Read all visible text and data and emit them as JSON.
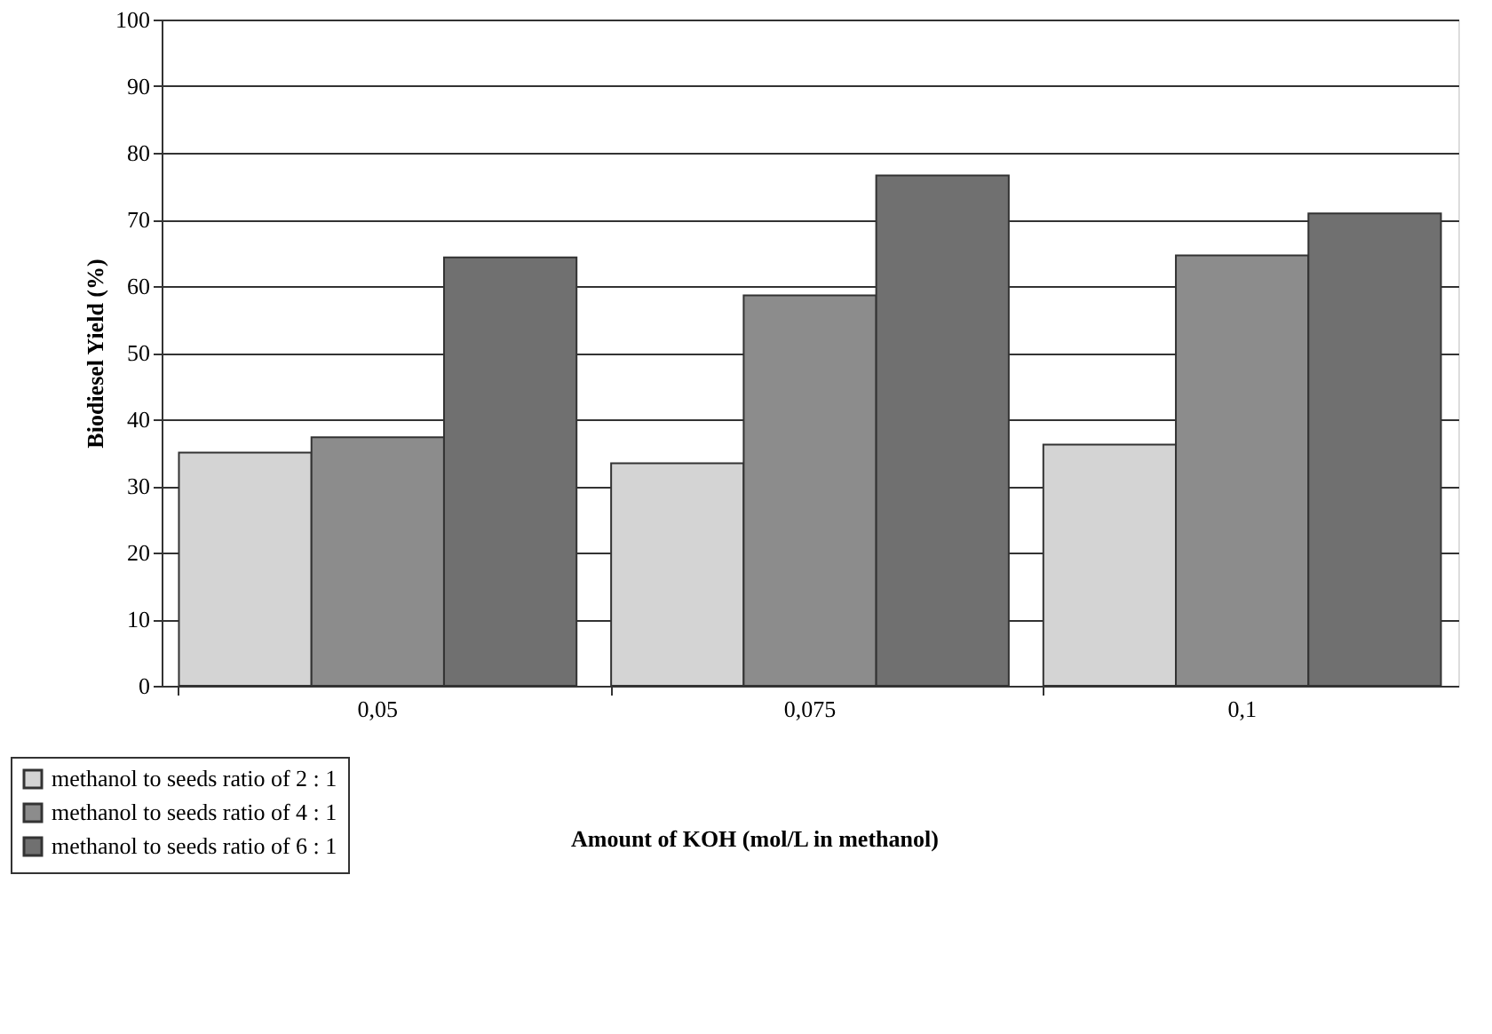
{
  "chart_data": {
    "type": "bar",
    "categories": [
      "0,05",
      "0,075",
      "0,1"
    ],
    "series": [
      {
        "name": "methanol to seeds ratio of 2 : 1",
        "color": "#d4d4d4",
        "values": [
          35.0,
          33.4,
          36.2
        ]
      },
      {
        "name": "methanol to seeds ratio of 4 : 1",
        "color": "#8c8c8c",
        "values": [
          37.3,
          58.6,
          64.6
        ]
      },
      {
        "name": "methanol to seeds ratio of 6 : 1",
        "color": "#707070",
        "values": [
          64.3,
          76.6,
          70.9
        ]
      }
    ],
    "xlabel": "Amount of KOH (mol/L in methanol)",
    "ylabel": "Biodiesel Yield (%)",
    "ylim": [
      0,
      100
    ],
    "yticks": [
      0,
      10,
      20,
      30,
      40,
      50,
      60,
      70,
      80,
      90,
      100
    ],
    "grid": "y",
    "legend": "bottom left"
  }
}
